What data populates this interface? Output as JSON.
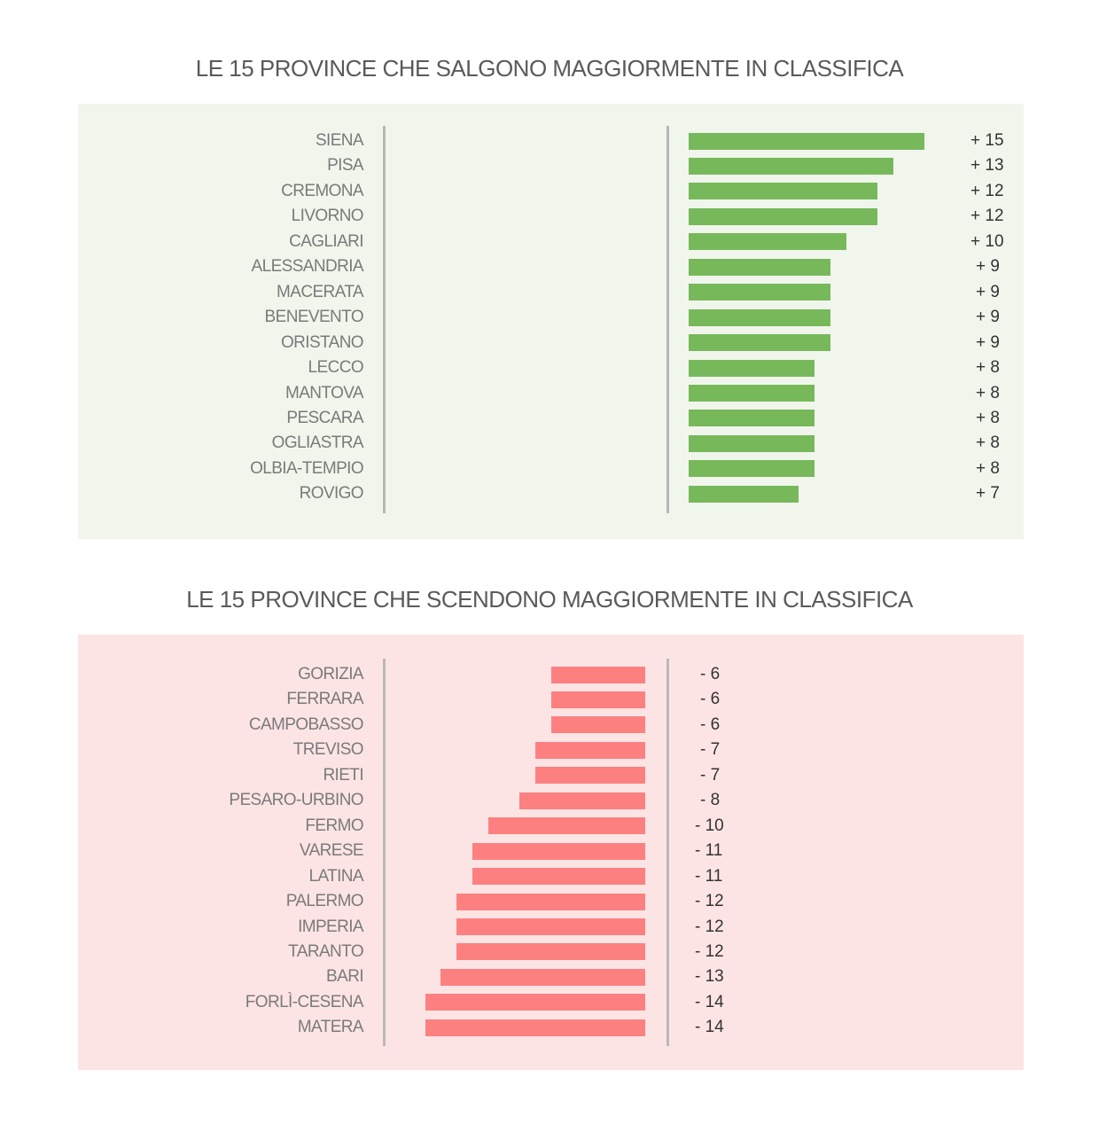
{
  "chart_data": [
    {
      "type": "bar",
      "orientation": "horizontal",
      "title": "LE 15 PROVINCE CHE SALGONO MAGGIORMENTE IN CLASSIFICA",
      "categories": [
        "SIENA",
        "PISA",
        "CREMONA",
        "LIVORNO",
        "CAGLIARI",
        "ALESSANDRIA",
        "MACERATA",
        "BENEVENTO",
        "ORISTANO",
        "LECCO",
        "MANTOVA",
        "PESCARA",
        "OGLIASTRA",
        "OLBIA-TEMPIO",
        "ROVIGO"
      ],
      "values": [
        15,
        13,
        12,
        12,
        10,
        9,
        9,
        9,
        9,
        8,
        8,
        8,
        8,
        8,
        7
      ],
      "value_labels": [
        "+ 15",
        "+ 13",
        "+ 12",
        "+ 12",
        "+ 10",
        "+ 9",
        "+ 9",
        "+ 9",
        "+ 9",
        "+ 8",
        "+ 8",
        "+ 8",
        "+ 8",
        "+ 8",
        "+ 7"
      ],
      "bar_color": "#77b85b",
      "background": "#f1f6ec"
    },
    {
      "type": "bar",
      "orientation": "horizontal",
      "title": "LE 15 PROVINCE CHE SCENDONO MAGGIORMENTE IN CLASSIFICA",
      "categories": [
        "GORIZIA",
        "FERRARA",
        "CAMPOBASSO",
        "TREVISO",
        "RIETI",
        "PESARO-URBINO",
        "FERMO",
        "VARESE",
        "LATINA",
        "PALERMO",
        "IMPERIA",
        "TARANTO",
        "BARI",
        "FORLÌ-CESENA",
        "MATERA"
      ],
      "values": [
        -6,
        -6,
        -6,
        -7,
        -7,
        -8,
        -10,
        -11,
        -11,
        -12,
        -12,
        -12,
        -13,
        -14,
        -14
      ],
      "value_labels": [
        "- 6",
        "- 6",
        "- 6",
        "- 7",
        "- 7",
        "- 8",
        "- 10",
        "- 11",
        "- 11",
        "- 12",
        "- 12",
        "- 12",
        "- 13",
        "- 14",
        "- 14"
      ],
      "bar_color": "#fd8081",
      "background": "#fde4e4"
    }
  ]
}
